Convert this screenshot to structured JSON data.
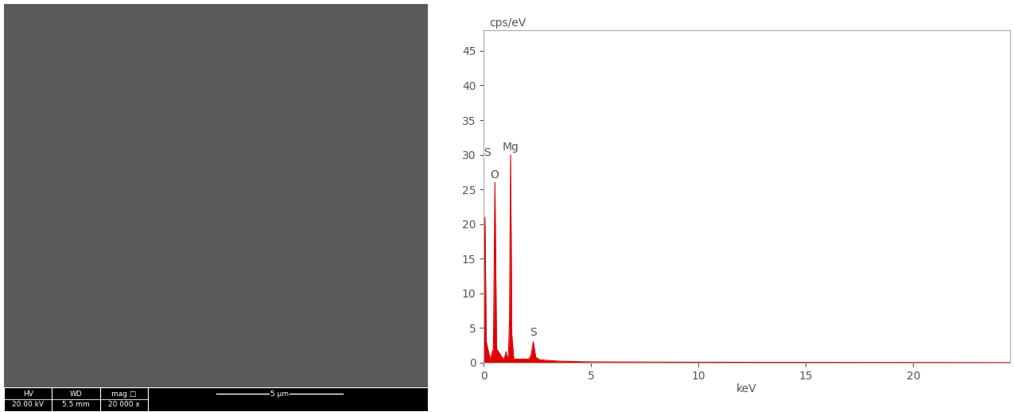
{
  "chart_data": {
    "type": "line",
    "y_label": "cps/eV",
    "x_label": "keV",
    "x": [
      0,
      0.03,
      0.06,
      0.12,
      0.3,
      0.45,
      0.525,
      0.6,
      0.9,
      1.0,
      1.04,
      1.08,
      1.15,
      1.2,
      1.253,
      1.31,
      1.4,
      2.1,
      2.2,
      2.31,
      2.42,
      2.6,
      3.5,
      5,
      10,
      24.5
    ],
    "values": [
      0,
      12,
      21,
      3,
      0.5,
      2,
      26,
      2,
      0.5,
      1,
      1.6,
      0.8,
      1,
      6,
      30,
      4,
      0.5,
      0.5,
      1,
      3,
      0.8,
      0.4,
      0.2,
      0.1,
      0.05,
      0
    ],
    "color": "#e00000",
    "xlim": [
      0,
      24.5
    ],
    "xticks": [
      0,
      5,
      10,
      15,
      20
    ],
    "ylim": [
      0,
      48
    ],
    "yticks": [
      0,
      5,
      10,
      15,
      20,
      25,
      30,
      35,
      40,
      45
    ],
    "grid": false,
    "annotations": [
      {
        "text": "S",
        "x": 0.0,
        "y": 29.5
      },
      {
        "text": "O",
        "x": 0.5,
        "y": 26.3
      },
      {
        "text": "Mg",
        "x": 1.25,
        "y": 30.3
      },
      {
        "text": "S",
        "x": 2.31,
        "y": 3.5
      }
    ]
  },
  "micrograph": {
    "info_bar": [
      {
        "header": "HV",
        "value": "20.00 kV"
      },
      {
        "header": "WD",
        "value": "5.5 mm"
      },
      {
        "header": "mag □",
        "value": "20 000 x"
      }
    ],
    "scale_bar": "5 µm"
  }
}
